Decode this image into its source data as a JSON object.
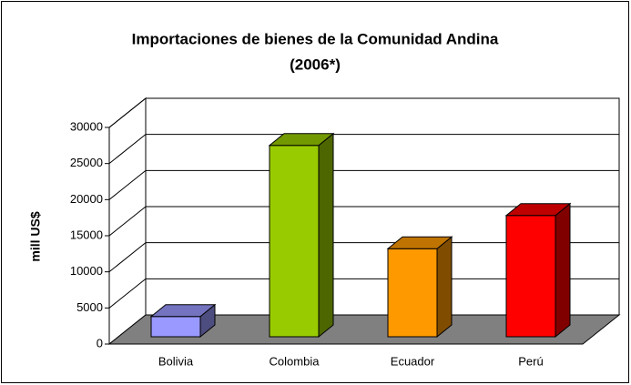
{
  "chart_data": {
    "type": "bar3d",
    "title": "Importaciones de bienes de la Comunidad Andina",
    "subtitle": "(2006*)",
    "y_label": "mill US$",
    "categories": [
      "Bolivia",
      "Colombia",
      "Ecuador",
      "Perú"
    ],
    "series": [
      {
        "name": "Importaciones",
        "colors": [
          "#9999ff",
          "#99cc00",
          "#ff9900",
          "#ff0000"
        ],
        "values": [
          2800,
          26500,
          12200,
          16800
        ]
      }
    ],
    "ylim": [
      0,
      30000
    ],
    "yticks": [
      0,
      5000,
      10000,
      15000,
      20000,
      25000,
      30000
    ],
    "grid": true
  }
}
